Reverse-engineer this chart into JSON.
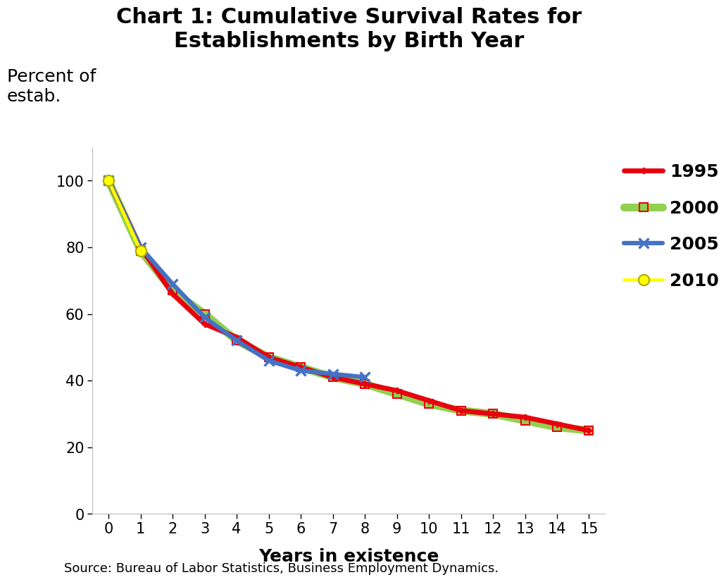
{
  "title": "Chart 1: Cumulative Survival Rates for\nEstablishments by Birth Year",
  "xlabel": "Years in existence",
  "ylabel": "Percent of\nestab.",
  "source": "Source: Bureau of Labor Statistics, Business Employment Dynamics.",
  "xlim": [
    -0.5,
    15.5
  ],
  "ylim": [
    0,
    110
  ],
  "yticks": [
    0,
    20,
    40,
    60,
    80,
    100
  ],
  "xticks": [
    0,
    1,
    2,
    3,
    4,
    5,
    6,
    7,
    8,
    9,
    10,
    11,
    12,
    13,
    14,
    15
  ],
  "series": {
    "1995": {
      "x": [
        0,
        1,
        2,
        3,
        4,
        5,
        6,
        7,
        8,
        9,
        10,
        11,
        12,
        13,
        14,
        15
      ],
      "y": [
        100,
        80,
        66,
        57,
        53,
        47,
        44,
        41,
        39,
        37,
        34,
        31,
        30,
        29,
        27,
        25
      ],
      "color": "#E8000D",
      "linewidth": 5.0,
      "marker": "P",
      "markersize": 6,
      "markerfacecolor": "#E8000D",
      "markeredgecolor": "#E8000D",
      "markeredgewidth": 1.0,
      "zorder": 4
    },
    "2000": {
      "x": [
        0,
        1,
        2,
        3,
        4,
        5,
        6,
        7,
        8,
        9,
        10,
        11,
        12,
        13,
        14,
        15
      ],
      "y": [
        100,
        79,
        67,
        60,
        52,
        47,
        44,
        41,
        39,
        36,
        33,
        31,
        30,
        28,
        26,
        25
      ],
      "color": "#92D050",
      "linewidth": 8.0,
      "marker": "s",
      "markersize": 8,
      "markerfacecolor": "#92D050",
      "markeredgecolor": "#E8000D",
      "markeredgewidth": 1.5,
      "zorder": 3
    },
    "2005": {
      "x": [
        0,
        1,
        2,
        3,
        4,
        5,
        6,
        7,
        8
      ],
      "y": [
        100,
        80,
        69,
        59,
        52,
        46,
        43,
        42,
        41
      ],
      "color": "#4472C4",
      "linewidth": 4.5,
      "marker": "x",
      "markersize": 10,
      "markerfacecolor": "#4472C4",
      "markeredgecolor": "#4472C4",
      "markeredgewidth": 2.5,
      "zorder": 5
    },
    "2010": {
      "x": [
        0,
        1
      ],
      "y": [
        100,
        79
      ],
      "color": "#FFFF00",
      "linewidth": 3.5,
      "marker": "o",
      "markersize": 11,
      "markerfacecolor": "#FFFF00",
      "markeredgecolor": "#AAAA00",
      "markeredgewidth": 1.5,
      "zorder": 6
    }
  },
  "legend_order": [
    "1995",
    "2000",
    "2005",
    "2010"
  ],
  "legend_fontsize": 18,
  "title_fontsize": 22,
  "axis_label_fontsize": 18,
  "tick_fontsize": 15,
  "source_fontsize": 13
}
